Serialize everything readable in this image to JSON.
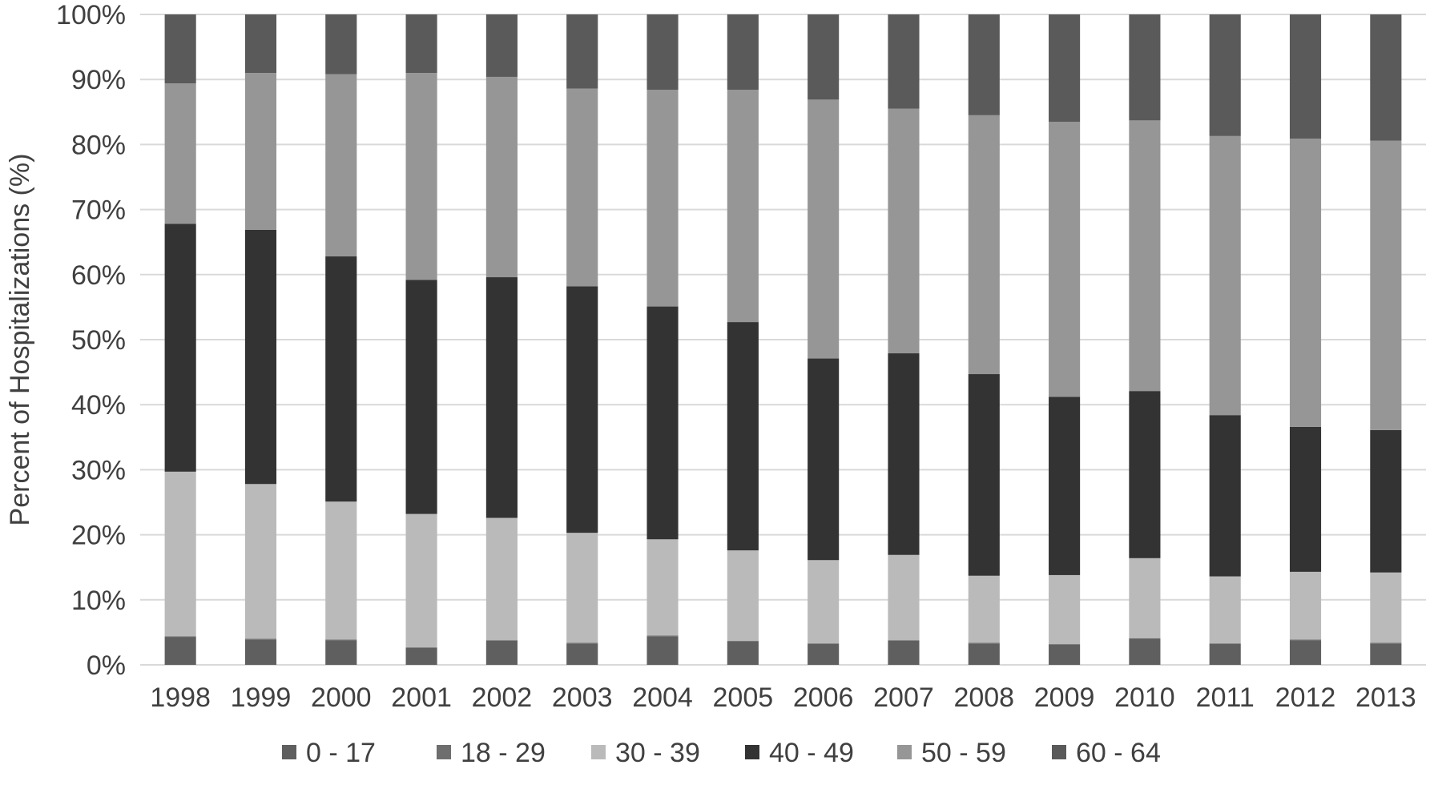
{
  "chart_data": {
    "type": "bar",
    "stacked": true,
    "percent": true,
    "title": "",
    "xlabel": "",
    "ylabel": "Percent of Hospitalizations (%)",
    "ylim": [
      0,
      100
    ],
    "yticks": [
      "0%",
      "10%",
      "20%",
      "30%",
      "40%",
      "50%",
      "60%",
      "70%",
      "80%",
      "90%",
      "100%"
    ],
    "grid": true,
    "legend_position": "bottom",
    "categories": [
      "1998",
      "1999",
      "2000",
      "2001",
      "2002",
      "2003",
      "2004",
      "2005",
      "2006",
      "2007",
      "2008",
      "2009",
      "2010",
      "2011",
      "2012",
      "2013"
    ],
    "series": [
      {
        "name": "0 - 17",
        "color": "#5f5f5f",
        "values": [
          4.3,
          3.9,
          3.8,
          2.6,
          3.7,
          3.3,
          4.4,
          3.6,
          3.2,
          3.7,
          3.3,
          3.1,
          4.0,
          3.2,
          3.8,
          3.3
        ]
      },
      {
        "name": "18 - 29",
        "color": "#6e6e6e",
        "values": [
          0.1,
          0.1,
          0.1,
          0.1,
          0.1,
          0.1,
          0.1,
          0.1,
          0.1,
          0.1,
          0.1,
          0.1,
          0.1,
          0.1,
          0.1,
          0.1
        ]
      },
      {
        "name": "30 - 39",
        "color": "#bababa",
        "values": [
          25.3,
          23.8,
          21.2,
          20.5,
          18.8,
          16.9,
          14.8,
          13.9,
          12.8,
          13.1,
          10.3,
          10.6,
          12.3,
          10.3,
          10.4,
          10.8
        ]
      },
      {
        "name": "40 - 49",
        "color": "#333333",
        "values": [
          38.1,
          39.1,
          37.7,
          36.0,
          37.0,
          37.9,
          35.8,
          35.1,
          31.0,
          31.0,
          31.0,
          27.4,
          25.7,
          24.8,
          22.3,
          21.9
        ]
      },
      {
        "name": "50 - 59",
        "color": "#969696",
        "values": [
          21.6,
          24.1,
          28.0,
          31.8,
          30.8,
          30.4,
          33.3,
          35.7,
          39.8,
          37.6,
          39.8,
          42.3,
          41.6,
          42.9,
          44.3,
          44.5
        ]
      },
      {
        "name": "60 - 64",
        "color": "#5a5a5a",
        "values": [
          10.6,
          9.0,
          9.2,
          9.0,
          9.6,
          11.4,
          11.6,
          11.6,
          13.1,
          14.5,
          15.5,
          16.5,
          16.3,
          18.7,
          19.1,
          19.4
        ]
      }
    ]
  }
}
